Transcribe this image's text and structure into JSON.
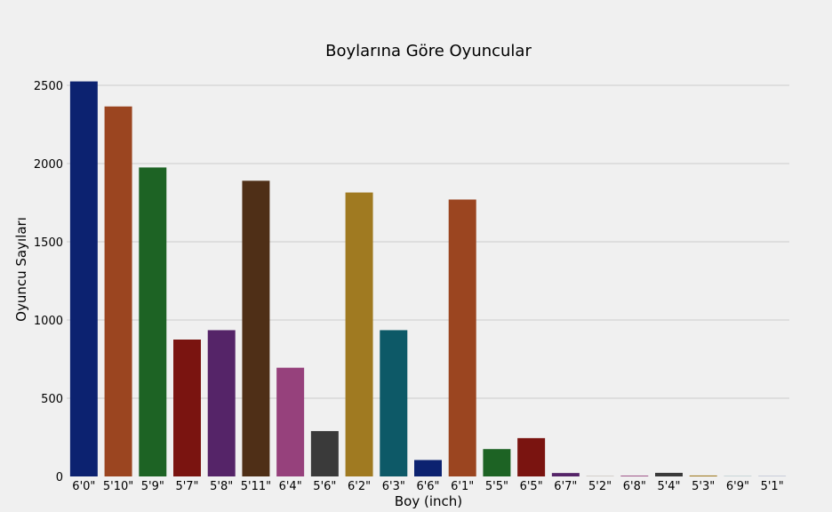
{
  "chart_data": {
    "type": "bar",
    "title": "Boylarına Göre Oyuncular",
    "xlabel": "Boy (inch)",
    "ylabel": "Oyuncu Sayıları",
    "categories": [
      "6'0\"",
      "5'10\"",
      "5'9\"",
      "5'7\"",
      "5'8\"",
      "5'11\"",
      "6'4\"",
      "5'6\"",
      "6'2\"",
      "6'3\"",
      "6'6\"",
      "6'1\"",
      "5'5\"",
      "6'5\"",
      "6'7\"",
      "5'2\"",
      "6'8\"",
      "5'4\"",
      "5'3\"",
      "6'9\"",
      "5'1\""
    ],
    "values": [
      2525,
      2365,
      1975,
      875,
      935,
      1890,
      695,
      290,
      1815,
      935,
      105,
      1770,
      175,
      245,
      22,
      1,
      5,
      23,
      6,
      1,
      1
    ],
    "colors": [
      "#0c2270",
      "#9b4520",
      "#1d6324",
      "#7a1410",
      "#552468",
      "#4f2f17",
      "#96417c",
      "#3a3a3a",
      "#a07a21",
      "#0d5967",
      "#0c2270",
      "#9b4520",
      "#1d6324",
      "#7a1410",
      "#552468",
      "#4f2f17",
      "#96417c",
      "#3a3a3a",
      "#a07a21",
      "#0d5967",
      "#0c2270"
    ],
    "yticks": [
      0,
      500,
      1000,
      1500,
      2000,
      2500
    ],
    "ylim": [
      0,
      2525
    ],
    "grid": true,
    "background": "#f0f0f0",
    "grid_color": "#cbcbcb"
  }
}
